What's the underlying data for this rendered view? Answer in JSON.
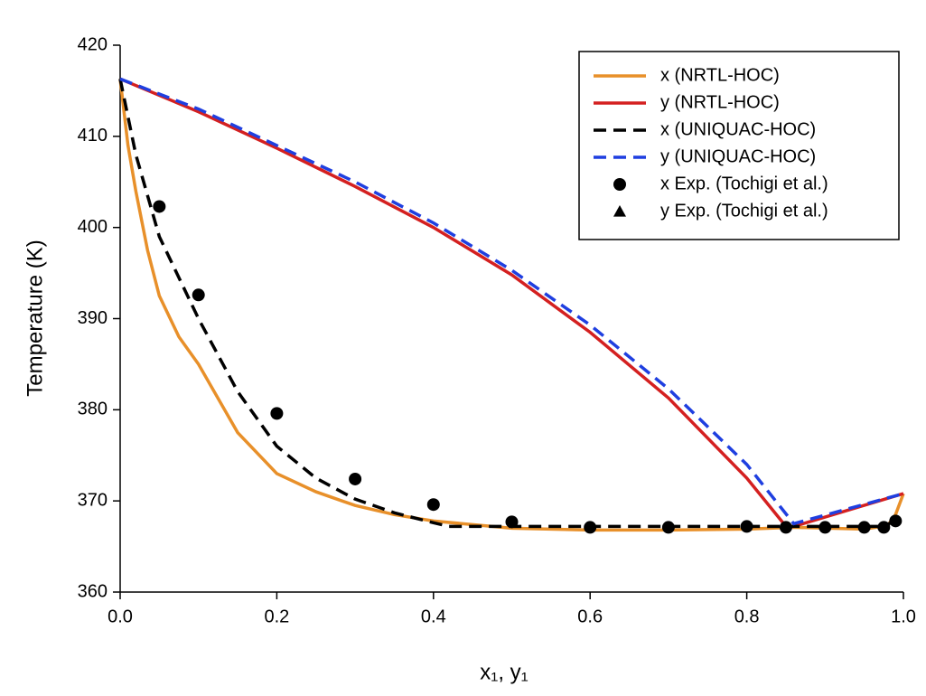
{
  "chart_data": {
    "type": "line",
    "xlabel": "x₁, y₁",
    "ylabel": "Temperature (K)",
    "xlim": [
      0,
      1
    ],
    "ylim": [
      360,
      420
    ],
    "xticks": [
      {
        "value": 0,
        "label": "0.0"
      },
      0.2,
      0.4,
      0.6,
      0.8,
      {
        "value": 1,
        "label": "1.0"
      }
    ],
    "yticks": [
      360,
      370,
      380,
      390,
      400,
      410,
      420
    ],
    "legend": "upper right",
    "series": [
      {
        "name": "x (NRTL-HOC)",
        "color": "#e8902a",
        "style": "solid",
        "x": [
          0,
          0.01,
          0.02,
          0.035,
          0.05,
          0.075,
          0.1,
          0.15,
          0.2,
          0.25,
          0.3,
          0.35,
          0.4,
          0.5,
          0.6,
          0.7,
          0.8,
          0.86,
          0.95,
          0.98,
          0.99,
          1.0
        ],
        "values": [
          416.3,
          409,
          404,
          397.5,
          392.5,
          388,
          385,
          377.5,
          373,
          371,
          369.5,
          368.5,
          367.8,
          367,
          366.8,
          366.8,
          366.9,
          367.1,
          366.9,
          367.3,
          368.5,
          370.8
        ]
      },
      {
        "name": "y (NRTL-HOC)",
        "color": "#d42020",
        "style": "solid",
        "x": [
          0,
          0.1,
          0.2,
          0.3,
          0.4,
          0.5,
          0.6,
          0.7,
          0.8,
          0.85,
          0.86,
          1.0
        ],
        "values": [
          416.3,
          412.7,
          408.7,
          404.5,
          400,
          394.8,
          388.5,
          381.3,
          372.5,
          367.2,
          367.2,
          370.8
        ]
      },
      {
        "name": "x (UNIQUAC-HOC)",
        "color": "#000000",
        "style": "dashed",
        "x": [
          0,
          0.02,
          0.05,
          0.1,
          0.15,
          0.2,
          0.25,
          0.3,
          0.35,
          0.4,
          0.42,
          0.6,
          0.8,
          0.97,
          1.0
        ],
        "values": [
          416.3,
          408,
          399,
          390,
          382,
          376,
          372.5,
          370.2,
          368.7,
          367.6,
          367.2,
          367.2,
          367.2,
          367.2,
          368
        ]
      },
      {
        "name": "y (UNIQUAC-HOC)",
        "color": "#1f3fe0",
        "style": "dashed",
        "x": [
          0,
          0.1,
          0.2,
          0.3,
          0.4,
          0.5,
          0.6,
          0.7,
          0.8,
          0.86,
          1.0
        ],
        "values": [
          416.3,
          413,
          409,
          405,
          400.5,
          395.3,
          389.3,
          382.3,
          374,
          367.5,
          370.8
        ]
      },
      {
        "name": "x Exp. (Tochigi et al.)",
        "color": "#000000",
        "style": "circle",
        "x": [
          0.05,
          0.1,
          0.2,
          0.3,
          0.4,
          0.5,
          0.6,
          0.7,
          0.8,
          0.85,
          0.9,
          0.95,
          0.975,
          0.99
        ],
        "values": [
          402.3,
          392.6,
          379.6,
          372.4,
          369.6,
          367.7,
          367.1,
          367.1,
          367.2,
          367.1,
          367.1,
          367.1,
          367.1,
          367.8
        ]
      },
      {
        "name": "y Exp. (Tochigi et al.)",
        "color": "#000000",
        "style": "triangle",
        "x": [],
        "values": []
      }
    ]
  }
}
